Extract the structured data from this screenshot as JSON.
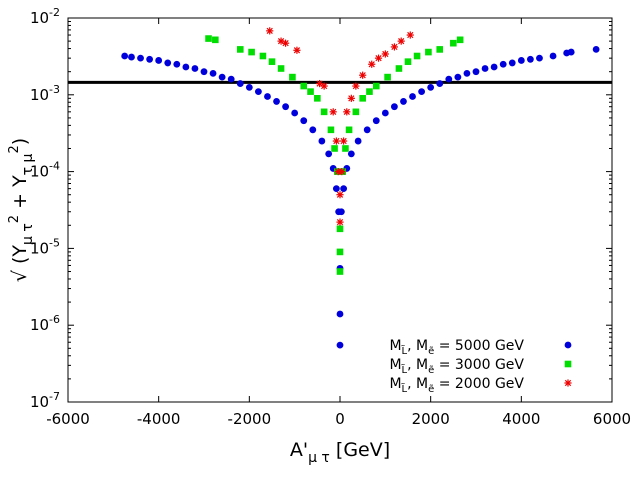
{
  "chart_data": {
    "type": "scatter",
    "title": "",
    "xlabel": "A'μτ [GeV]",
    "ylabel": "√(Yμτ² + Yτμ²)",
    "xlim": [
      -6000,
      6000
    ],
    "ylim_log10": [
      -7,
      -2
    ],
    "y_scale": "log",
    "x_ticks": [
      -6000,
      -4000,
      -2000,
      0,
      2000,
      4000,
      6000
    ],
    "x_tick_labels": [
      "-6000",
      "-4000",
      "-2000",
      "0",
      "2000",
      "4000",
      "6000"
    ],
    "y_tick_exponents": [
      -7,
      -6,
      -5,
      -4,
      -3,
      -2
    ],
    "y_tick_base": "10",
    "reference_line_y": 0.00145,
    "legend_position": "bottom-right",
    "series": [
      {
        "name": "ML̃, Mẽ = 5000 GeV",
        "legend_main": "M",
        "legend_rest": " = 5000 GeV",
        "marker": "circle",
        "color": "#0000dd",
        "points": [
          [
            -4750,
            0.0032
          ],
          [
            -4600,
            0.0031
          ],
          [
            -4400,
            0.003
          ],
          [
            -4200,
            0.0029
          ],
          [
            -4000,
            0.0028
          ],
          [
            -3800,
            0.0026
          ],
          [
            -3600,
            0.0025
          ],
          [
            -3400,
            0.0023
          ],
          [
            -3200,
            0.0022
          ],
          [
            -3000,
            0.002
          ],
          [
            -2800,
            0.0019
          ],
          [
            -2600,
            0.0017
          ],
          [
            -2400,
            0.0016
          ],
          [
            -2200,
            0.0014
          ],
          [
            -2000,
            0.00125
          ],
          [
            -1800,
            0.0011
          ],
          [
            -1600,
            0.00095
          ],
          [
            -1400,
            0.00082
          ],
          [
            -1200,
            0.0007
          ],
          [
            -1000,
            0.00058
          ],
          [
            -800,
            0.00046
          ],
          [
            -600,
            0.00035
          ],
          [
            -400,
            0.00025
          ],
          [
            -250,
            0.00017
          ],
          [
            -150,
            0.00011
          ],
          [
            -80,
            6e-05
          ],
          [
            -30,
            3e-05
          ],
          [
            0,
            5.5e-06
          ],
          [
            0,
            1.4e-06
          ],
          [
            0,
            5.5e-07
          ],
          [
            30,
            3e-05
          ],
          [
            80,
            6e-05
          ],
          [
            150,
            0.00011
          ],
          [
            250,
            0.00017
          ],
          [
            400,
            0.00025
          ],
          [
            600,
            0.00035
          ],
          [
            800,
            0.00046
          ],
          [
            1000,
            0.00058
          ],
          [
            1200,
            0.0007
          ],
          [
            1400,
            0.00082
          ],
          [
            1600,
            0.00095
          ],
          [
            1800,
            0.0011
          ],
          [
            2000,
            0.00125
          ],
          [
            2200,
            0.0014
          ],
          [
            2400,
            0.0016
          ],
          [
            2600,
            0.0017
          ],
          [
            2800,
            0.0019
          ],
          [
            3000,
            0.002
          ],
          [
            3200,
            0.0022
          ],
          [
            3400,
            0.0023
          ],
          [
            3600,
            0.0025
          ],
          [
            3800,
            0.0026
          ],
          [
            4000,
            0.0028
          ],
          [
            4200,
            0.0029
          ],
          [
            4400,
            0.003
          ],
          [
            4700,
            0.0032
          ],
          [
            5000,
            0.0035
          ],
          [
            5100,
            0.0036
          ],
          [
            5650,
            0.0039
          ]
        ]
      },
      {
        "name": "ML̃, Mẽ = 3000 GeV",
        "legend_main": "M",
        "legend_rest": " = 3000 GeV",
        "marker": "square",
        "color": "#00dd00",
        "points": [
          [
            -2900,
            0.0054
          ],
          [
            -2750,
            0.0052
          ],
          [
            -2200,
            0.0039
          ],
          [
            -1950,
            0.0036
          ],
          [
            -1700,
            0.0032
          ],
          [
            -1500,
            0.0027
          ],
          [
            -1300,
            0.0022
          ],
          [
            -1050,
            0.0017
          ],
          [
            -800,
            0.0013
          ],
          [
            -650,
            0.0011
          ],
          [
            -500,
            0.0009
          ],
          [
            -350,
            0.0006
          ],
          [
            -200,
            0.00035
          ],
          [
            -120,
            0.0002
          ],
          [
            -60,
            0.0001
          ],
          [
            0,
            1.8e-05
          ],
          [
            0,
            9e-06
          ],
          [
            0,
            5e-06
          ],
          [
            60,
            0.0001
          ],
          [
            120,
            0.0002
          ],
          [
            200,
            0.00035
          ],
          [
            350,
            0.0006
          ],
          [
            500,
            0.0009
          ],
          [
            650,
            0.0011
          ],
          [
            800,
            0.0013
          ],
          [
            1050,
            0.0017
          ],
          [
            1300,
            0.0022
          ],
          [
            1500,
            0.0027
          ],
          [
            1700,
            0.0032
          ],
          [
            1950,
            0.0036
          ],
          [
            2200,
            0.0039
          ],
          [
            2500,
            0.0047
          ],
          [
            2650,
            0.0052
          ]
        ]
      },
      {
        "name": "ML̃, Mẽ = 2000 GeV",
        "legend_main": "M",
        "legend_rest": " = 2000 GeV",
        "marker": "star",
        "color": "#ee0000",
        "points": [
          [
            -1550,
            0.0068
          ],
          [
            -1300,
            0.005
          ],
          [
            -1200,
            0.0047
          ],
          [
            -950,
            0.0038
          ],
          [
            -450,
            0.0014
          ],
          [
            -350,
            0.0013
          ],
          [
            -150,
            0.0006
          ],
          [
            -80,
            0.00025
          ],
          [
            -40,
            0.0001
          ],
          [
            0,
            5e-05
          ],
          [
            0,
            2.2e-05
          ],
          [
            40,
            0.0001
          ],
          [
            80,
            0.00025
          ],
          [
            150,
            0.0006
          ],
          [
            250,
            0.0009
          ],
          [
            350,
            0.0013
          ],
          [
            500,
            0.0018
          ],
          [
            700,
            0.0025
          ],
          [
            850,
            0.003
          ],
          [
            1000,
            0.0034
          ],
          [
            1200,
            0.0042
          ],
          [
            1350,
            0.005
          ],
          [
            1550,
            0.006
          ]
        ]
      }
    ]
  }
}
